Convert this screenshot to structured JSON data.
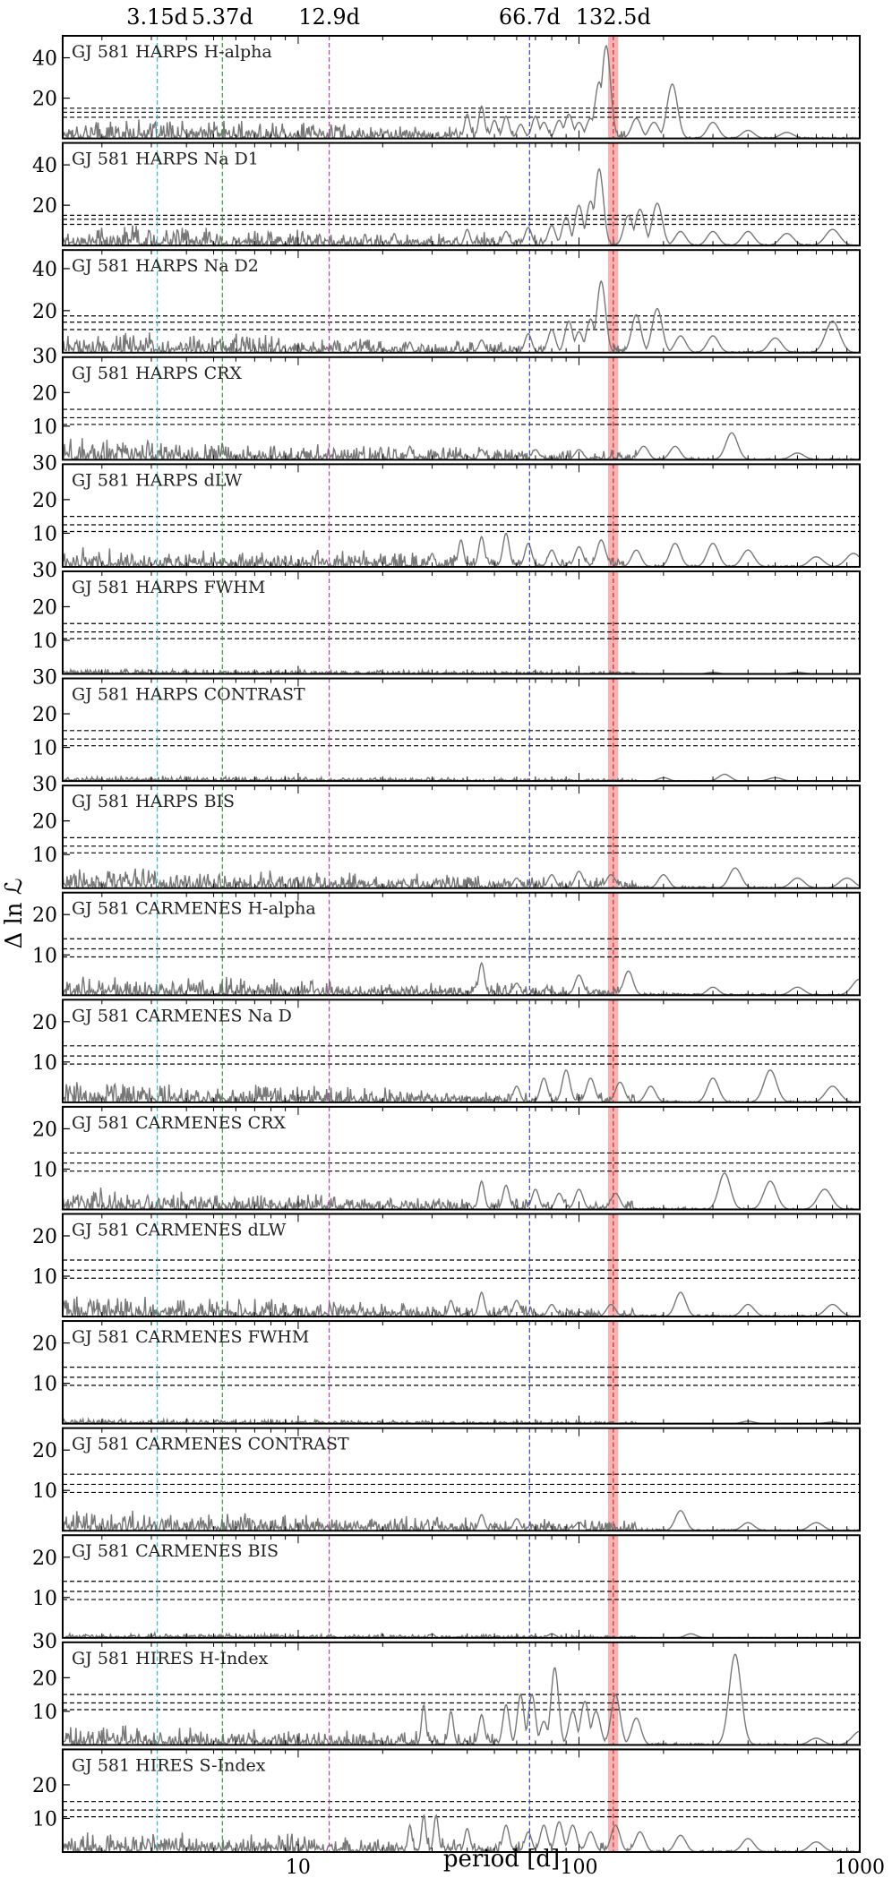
{
  "chart_data": {
    "type": "line",
    "xlabel": "period [d]",
    "ylabel": "Δ ln ℒ",
    "xscale": "log",
    "xlim": [
      1.45,
      1000
    ],
    "x_ticks": [
      10,
      100,
      1000
    ],
    "x_tick_labels": [
      "10",
      "100",
      "1000"
    ],
    "highlight_band": {
      "from": 127,
      "to": 138,
      "center": 132.5,
      "color": "#f4a6a6"
    },
    "marked_periods": [
      {
        "label": "3.15d",
        "period": 3.15,
        "color": "#22c5d6"
      },
      {
        "label": "5.37d",
        "period": 5.37,
        "color": "#2ca02c"
      },
      {
        "label": "12.9d",
        "period": 12.9,
        "color": "#cc33cc"
      },
      {
        "label": "66.7d",
        "period": 66.7,
        "color": "#3b3bd6"
      },
      {
        "label": "132.5d",
        "period": 132.5,
        "color": "#d62728"
      }
    ],
    "thresholds_color": "#000000",
    "curve_color": "#777777",
    "panels": [
      {
        "name": "GJ 581 HARPS H-alpha",
        "ylim": [
          0,
          50
        ],
        "yticks": [
          20,
          40
        ],
        "thresholds": [
          10.5,
          13,
          15
        ],
        "peaks": [
          [
            40,
            12
          ],
          [
            45,
            16
          ],
          [
            50,
            9
          ],
          [
            55,
            11
          ],
          [
            62,
            7
          ],
          [
            70,
            11
          ],
          [
            75,
            8
          ],
          [
            85,
            9
          ],
          [
            92,
            12
          ],
          [
            100,
            8
          ],
          [
            110,
            10
          ],
          [
            118,
            28
          ],
          [
            125,
            46
          ],
          [
            160,
            10
          ],
          [
            185,
            8
          ],
          [
            215,
            27
          ],
          [
            300,
            8
          ],
          [
            400,
            4
          ],
          [
            550,
            3
          ]
        ]
      },
      {
        "name": "GJ 581 HARPS Na D1",
        "ylim": [
          0,
          50
        ],
        "yticks": [
          20,
          40
        ],
        "thresholds": [
          10.5,
          13,
          15
        ],
        "peaks": [
          [
            22,
            6
          ],
          [
            40,
            8
          ],
          [
            55,
            7
          ],
          [
            66,
            9
          ],
          [
            80,
            10
          ],
          [
            90,
            14
          ],
          [
            100,
            20
          ],
          [
            110,
            22
          ],
          [
            118,
            38
          ],
          [
            150,
            15
          ],
          [
            165,
            18
          ],
          [
            190,
            21
          ],
          [
            230,
            7
          ],
          [
            300,
            7
          ],
          [
            400,
            7
          ],
          [
            550,
            6
          ],
          [
            800,
            8
          ]
        ]
      },
      {
        "name": "GJ 581 HARPS Na D2",
        "ylim": [
          0,
          48
        ],
        "yticks": [
          20,
          40
        ],
        "thresholds": [
          11,
          14.5,
          17.5
        ],
        "peaks": [
          [
            25,
            5
          ],
          [
            45,
            6
          ],
          [
            66,
            9
          ],
          [
            80,
            11
          ],
          [
            92,
            15
          ],
          [
            100,
            10
          ],
          [
            110,
            16
          ],
          [
            120,
            34
          ],
          [
            160,
            18
          ],
          [
            190,
            21
          ],
          [
            230,
            8
          ],
          [
            300,
            8
          ],
          [
            500,
            7
          ],
          [
            800,
            15
          ]
        ]
      },
      {
        "name": "GJ 581 HARPS CRX",
        "ylim": [
          0,
          30
        ],
        "yticks": [
          10,
          20,
          30
        ],
        "thresholds": [
          10.5,
          12.5,
          15
        ],
        "peaks": [
          [
            25,
            4
          ],
          [
            45,
            3
          ],
          [
            70,
            3
          ],
          [
            100,
            3
          ],
          [
            170,
            4
          ],
          [
            220,
            4
          ],
          [
            350,
            8
          ],
          [
            600,
            2
          ]
        ]
      },
      {
        "name": "GJ 581 HARPS dLW",
        "ylim": [
          0,
          30
        ],
        "yticks": [
          10,
          20,
          30
        ],
        "thresholds": [
          10.5,
          12.5,
          15
        ],
        "peaks": [
          [
            30,
            4
          ],
          [
            38,
            8
          ],
          [
            45,
            9
          ],
          [
            55,
            10
          ],
          [
            66,
            7
          ],
          [
            80,
            5
          ],
          [
            100,
            6
          ],
          [
            120,
            8
          ],
          [
            160,
            5
          ],
          [
            220,
            7
          ],
          [
            300,
            7
          ],
          [
            400,
            5
          ],
          [
            700,
            3
          ],
          [
            950,
            4
          ]
        ]
      },
      {
        "name": "GJ 581 HARPS FWHM",
        "ylim": [
          0,
          30
        ],
        "yticks": [
          10,
          20,
          30
        ],
        "thresholds": [
          10.5,
          12.5,
          15
        ],
        "peaks": [
          [
            300,
            0.5
          ],
          [
            600,
            0.5
          ]
        ]
      },
      {
        "name": "GJ 581 HARPS CONTRAST",
        "ylim": [
          0,
          30
        ],
        "yticks": [
          10,
          20,
          30
        ],
        "thresholds": [
          10.5,
          12.5,
          15
        ],
        "peaks": [
          [
            200,
            1
          ],
          [
            330,
            2
          ],
          [
            500,
            1
          ]
        ]
      },
      {
        "name": "GJ 581 HARPS BIS",
        "ylim": [
          0,
          30
        ],
        "yticks": [
          10,
          20,
          30
        ],
        "thresholds": [
          10.5,
          12.5,
          15
        ],
        "peaks": [
          [
            60,
            3
          ],
          [
            80,
            4
          ],
          [
            100,
            5
          ],
          [
            130,
            4
          ],
          [
            200,
            4
          ],
          [
            360,
            6
          ],
          [
            600,
            3
          ],
          [
            900,
            3
          ]
        ]
      },
      {
        "name": "GJ 581 CARMENES H-alpha",
        "ylim": [
          0,
          25
        ],
        "yticks": [
          10,
          20
        ],
        "thresholds": [
          9.5,
          11.5,
          14
        ],
        "peaks": [
          [
            45,
            8
          ],
          [
            60,
            3
          ],
          [
            100,
            5
          ],
          [
            150,
            6
          ],
          [
            300,
            2
          ],
          [
            600,
            2
          ],
          [
            1000,
            4
          ]
        ]
      },
      {
        "name": "GJ 581 CARMENES Na D",
        "ylim": [
          0,
          25
        ],
        "yticks": [
          10,
          20
        ],
        "thresholds": [
          9.5,
          11.5,
          14
        ],
        "peaks": [
          [
            60,
            4
          ],
          [
            75,
            6
          ],
          [
            90,
            8
          ],
          [
            110,
            6
          ],
          [
            140,
            5
          ],
          [
            180,
            4
          ],
          [
            300,
            6
          ],
          [
            480,
            8
          ],
          [
            800,
            4
          ]
        ]
      },
      {
        "name": "GJ 581 CARMENES CRX",
        "ylim": [
          0,
          25
        ],
        "yticks": [
          10,
          20
        ],
        "thresholds": [
          9.5,
          11.5,
          14
        ],
        "peaks": [
          [
            45,
            7
          ],
          [
            55,
            6
          ],
          [
            70,
            5
          ],
          [
            85,
            4
          ],
          [
            100,
            5
          ],
          [
            135,
            4
          ],
          [
            330,
            9
          ],
          [
            480,
            7
          ],
          [
            750,
            5
          ]
        ]
      },
      {
        "name": "GJ 581 CARMENES dLW",
        "ylim": [
          0,
          25
        ],
        "yticks": [
          10,
          20
        ],
        "thresholds": [
          9.5,
          11.5,
          14
        ],
        "peaks": [
          [
            35,
            4
          ],
          [
            45,
            6
          ],
          [
            60,
            4
          ],
          [
            80,
            3
          ],
          [
            130,
            3
          ],
          [
            230,
            6
          ],
          [
            400,
            3
          ],
          [
            800,
            3
          ]
        ]
      },
      {
        "name": "GJ 581 CARMENES FWHM",
        "ylim": [
          0,
          25
        ],
        "yticks": [
          10,
          20
        ],
        "thresholds": [
          9.5,
          11.5,
          14
        ],
        "peaks": [
          [
            400,
            0.6
          ],
          [
            800,
            0.4
          ]
        ]
      },
      {
        "name": "GJ 581 CARMENES CONTRAST",
        "ylim": [
          0,
          25
        ],
        "yticks": [
          10,
          20
        ],
        "thresholds": [
          9.5,
          11.5,
          14
        ],
        "peaks": [
          [
            45,
            4
          ],
          [
            60,
            3
          ],
          [
            100,
            2
          ],
          [
            230,
            5
          ],
          [
            400,
            2
          ],
          [
            700,
            2
          ]
        ]
      },
      {
        "name": "GJ 581 CARMENES BIS",
        "ylim": [
          0,
          25
        ],
        "yticks": [
          10,
          20
        ],
        "thresholds": [
          9.5,
          11.5,
          14
        ],
        "peaks": [
          [
            30,
            1
          ],
          [
            80,
            1
          ],
          [
            250,
            1
          ]
        ]
      },
      {
        "name": "GJ 581 HIRES H-Index",
        "ylim": [
          0,
          30
        ],
        "yticks": [
          10,
          20,
          30
        ],
        "thresholds": [
          10.5,
          12.5,
          15
        ],
        "peaks": [
          [
            28,
            12
          ],
          [
            35,
            10
          ],
          [
            45,
            9
          ],
          [
            55,
            12
          ],
          [
            62,
            15
          ],
          [
            68,
            15
          ],
          [
            75,
            7
          ],
          [
            82,
            23
          ],
          [
            95,
            10
          ],
          [
            105,
            13
          ],
          [
            115,
            10
          ],
          [
            135,
            15
          ],
          [
            160,
            8
          ],
          [
            360,
            27
          ],
          [
            700,
            2
          ],
          [
            1000,
            4
          ]
        ]
      },
      {
        "name": "GJ 581 HIRES S-Index",
        "ylim": [
          0,
          30
        ],
        "yticks": [
          10,
          20
        ],
        "thresholds": [
          10.5,
          12.5,
          15
        ],
        "peaks": [
          [
            25,
            8
          ],
          [
            28,
            11
          ],
          [
            31,
            11
          ],
          [
            40,
            7
          ],
          [
            55,
            8
          ],
          [
            66,
            6
          ],
          [
            75,
            8
          ],
          [
            85,
            9
          ],
          [
            95,
            8
          ],
          [
            110,
            6
          ],
          [
            135,
            8
          ],
          [
            165,
            6
          ],
          [
            230,
            5
          ],
          [
            400,
            4
          ],
          [
            700,
            3
          ]
        ]
      }
    ]
  }
}
